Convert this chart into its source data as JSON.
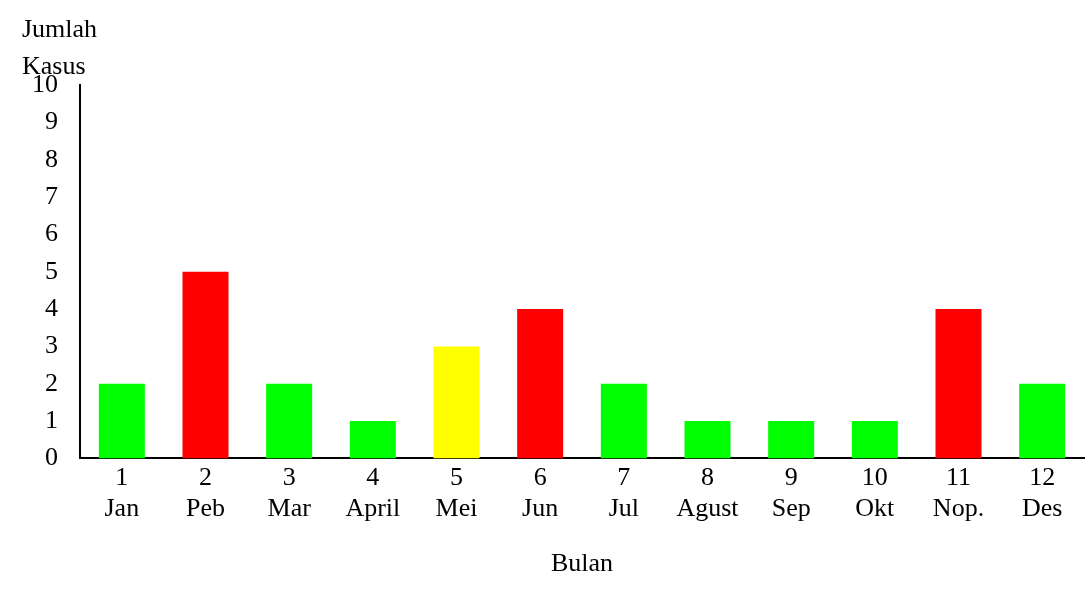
{
  "chart_data": {
    "type": "bar",
    "xlabel": "Bulan",
    "ylabel": "Jumlah Kasus",
    "categories": [
      "1\nJan",
      "2\nPeb",
      "3\nMar",
      "4\nApril",
      "5\nMei",
      "6\nJun",
      "7\nJul",
      "8\nAgust",
      "9\nSep",
      "10\nOkt",
      "11\nNop.",
      "12\nDes"
    ],
    "values": [
      2,
      5,
      2,
      1,
      3,
      4,
      2,
      1,
      1,
      1,
      4,
      2
    ],
    "colors": [
      "#00ff00",
      "#ff0000",
      "#00ff00",
      "#00ff00",
      "#ffff00",
      "#ff0000",
      "#00ff00",
      "#00ff00",
      "#00ff00",
      "#00ff00",
      "#ff0000",
      "#00ff00"
    ],
    "ylim": [
      0,
      10
    ],
    "yticks": [
      0,
      1,
      2,
      3,
      4,
      5,
      6,
      7,
      8,
      9,
      10
    ],
    "grid": false,
    "legend": false
  }
}
